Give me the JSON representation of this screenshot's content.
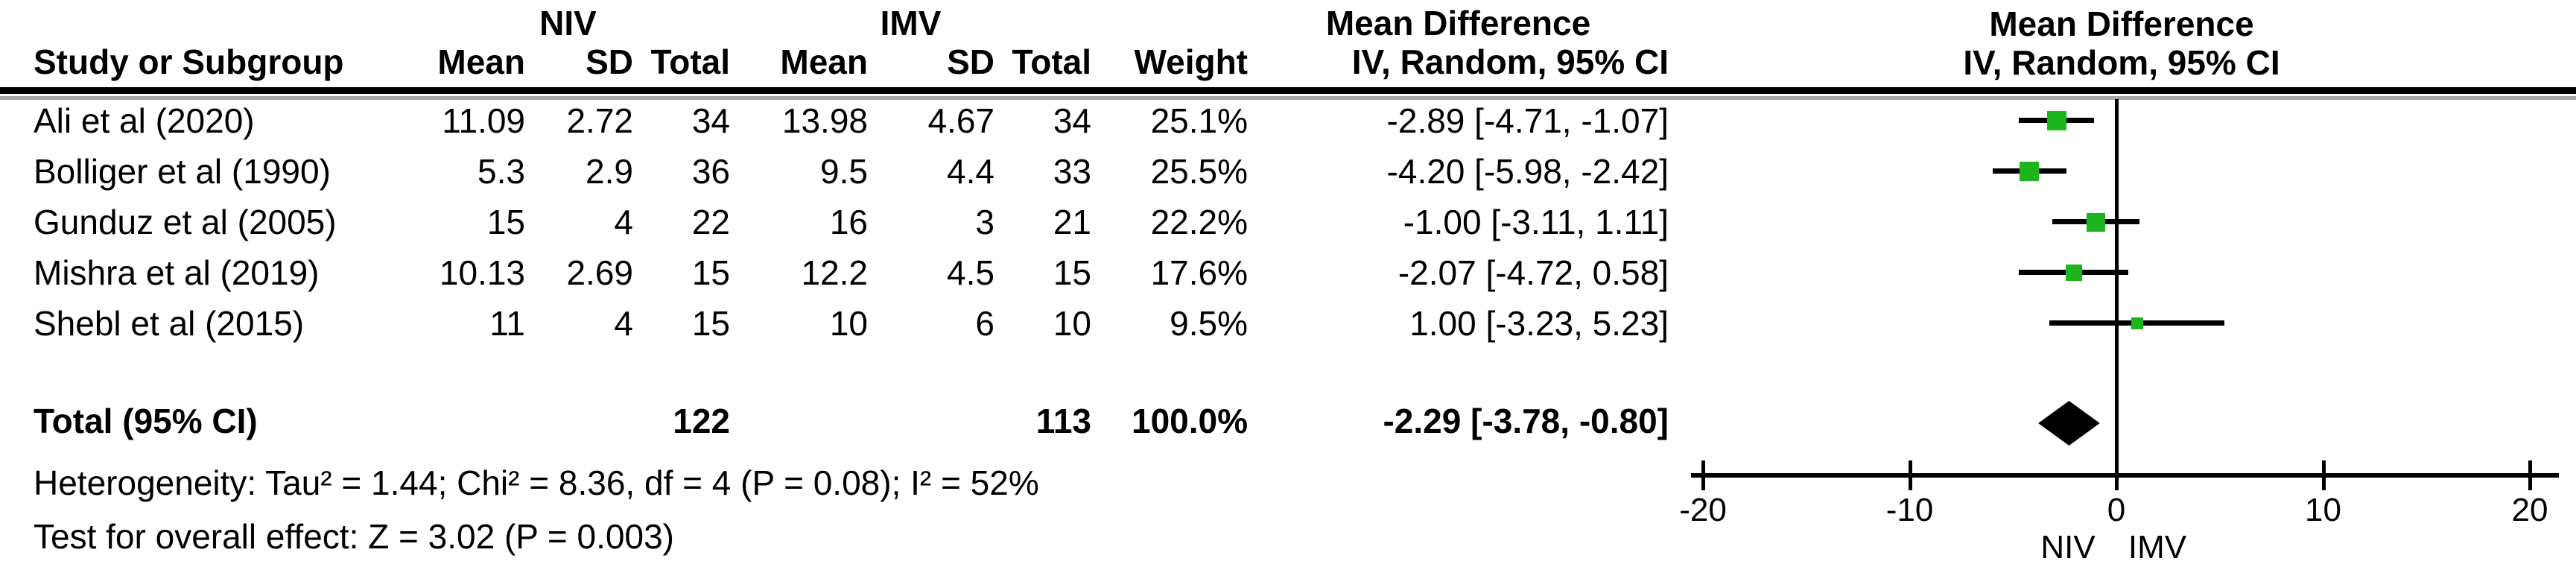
{
  "header": {
    "group1": "NIV",
    "group2": "IMV",
    "md_col_title": "Mean Difference",
    "plot_title": "Mean Difference",
    "col_study": "Study or Subgroup",
    "col_mean": "Mean",
    "col_sd": "SD",
    "col_total": "Total",
    "col_mean2": "Mean",
    "col_sd2": "SD",
    "col_total2": "Total",
    "col_weight": "Weight",
    "md_method": "IV, Random, 95% CI",
    "plot_method": "IV, Random, 95% CI"
  },
  "rows": [
    {
      "study": "Ali et al (2020)",
      "niv_mean": "11.09",
      "niv_sd": "2.72",
      "niv_total": "34",
      "imv_mean": "13.98",
      "imv_sd": "4.67",
      "imv_total": "34",
      "weight": "25.1%",
      "md": "-2.89 [-4.71, -1.07]"
    },
    {
      "study": "Bolliger et al (1990)",
      "niv_mean": "5.3",
      "niv_sd": "2.9",
      "niv_total": "36",
      "imv_mean": "9.5",
      "imv_sd": "4.4",
      "imv_total": "33",
      "weight": "25.5%",
      "md": "-4.20 [-5.98, -2.42]"
    },
    {
      "study": "Gunduz et al (2005)",
      "niv_mean": "15",
      "niv_sd": "4",
      "niv_total": "22",
      "imv_mean": "16",
      "imv_sd": "3",
      "imv_total": "21",
      "weight": "22.2%",
      "md": "-1.00 [-3.11, 1.11]"
    },
    {
      "study": "Mishra et al (2019)",
      "niv_mean": "10.13",
      "niv_sd": "2.69",
      "niv_total": "15",
      "imv_mean": "12.2",
      "imv_sd": "4.5",
      "imv_total": "15",
      "weight": "17.6%",
      "md": "-2.07 [-4.72, 0.58]"
    },
    {
      "study": "Shebl et al (2015)",
      "niv_mean": "11",
      "niv_sd": "4",
      "niv_total": "15",
      "imv_mean": "10",
      "imv_sd": "6",
      "imv_total": "10",
      "weight": "9.5%",
      "md": "1.00 [-3.23, 5.23]"
    }
  ],
  "total": {
    "label": "Total (95% CI)",
    "niv_total": "122",
    "imv_total": "113",
    "weight": "100.0%",
    "md": "-2.29 [-3.78, -0.80]"
  },
  "footer": {
    "heterogeneity": "Heterogeneity: Tau² = 1.44; Chi² = 8.36, df = 4 (P = 0.08); I² = 52%",
    "overall_effect": "Test for overall effect: Z = 3.02 (P = 0.003)"
  },
  "chart_data": {
    "type": "forest",
    "effect_measure": "Mean Difference, IV, Random, 95% CI",
    "title": "Mean Difference",
    "subtitle": "IV, Random, 95% CI",
    "xlim": [
      -20,
      20
    ],
    "axis_ticks": [
      -20,
      -10,
      0,
      10,
      20
    ],
    "x_left_label": "NIV",
    "x_right_label": "IMV",
    "studies": [
      {
        "name": "Ali et al (2020)",
        "md": -2.89,
        "ci_low": -4.71,
        "ci_high": -1.07,
        "weight": 25.1
      },
      {
        "name": "Bolliger et al (1990)",
        "md": -4.2,
        "ci_low": -5.98,
        "ci_high": -2.42,
        "weight": 25.5
      },
      {
        "name": "Gunduz et al (2005)",
        "md": -1.0,
        "ci_low": -3.11,
        "ci_high": 1.11,
        "weight": 22.2
      },
      {
        "name": "Mishra et al (2019)",
        "md": -2.07,
        "ci_low": -4.72,
        "ci_high": 0.58,
        "weight": 17.6
      },
      {
        "name": "Shebl et al (2015)",
        "md": 1.0,
        "ci_low": -3.23,
        "ci_high": 5.23,
        "weight": 9.5
      }
    ],
    "total": {
      "md": -2.29,
      "ci_low": -3.78,
      "ci_high": -0.8,
      "weight": 100.0
    },
    "marker_color": "#1eb41e",
    "line_color": "#000000"
  }
}
